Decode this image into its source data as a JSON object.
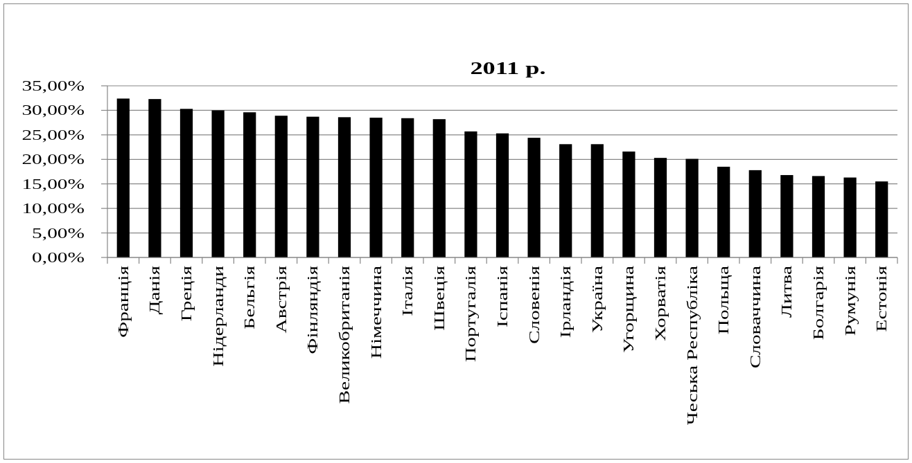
{
  "chart_data": {
    "type": "bar",
    "title": "2011 р.",
    "categories": [
      "Франція",
      "Данія",
      "Греція",
      "Нідерланди",
      "Бельгія",
      "Австрія",
      "Фінляндія",
      "Великобританія",
      "Німеччина",
      "Італія",
      "Швеція",
      "Португалія",
      "Іспанія",
      "Словенія",
      "Ірландія",
      "Україна",
      "Угорщина",
      "Хорватія",
      "Чеська Республіка",
      "Польща",
      "Словаччина",
      "Литва",
      "Болгарія",
      "Румунія",
      "Естонія"
    ],
    "values": [
      32.4,
      32.3,
      30.3,
      30.0,
      29.6,
      28.9,
      28.7,
      28.6,
      28.5,
      28.4,
      28.2,
      25.7,
      25.3,
      24.4,
      23.1,
      23.1,
      21.6,
      20.3,
      20.1,
      18.5,
      17.8,
      16.8,
      16.6,
      16.3,
      15.5
    ],
    "color": "#000000",
    "ylim": [
      0,
      35
    ],
    "yticks": [
      {
        "value": 0,
        "label": "0,00%"
      },
      {
        "value": 5,
        "label": "5,00%"
      },
      {
        "value": 10,
        "label": "10,00%"
      },
      {
        "value": 15,
        "label": "15,00%"
      },
      {
        "value": 20,
        "label": "20,00%"
      },
      {
        "value": 25,
        "label": "25,00%"
      },
      {
        "value": 30,
        "label": "30,00%"
      },
      {
        "value": 35,
        "label": "35,00%"
      }
    ],
    "grid": "y"
  }
}
